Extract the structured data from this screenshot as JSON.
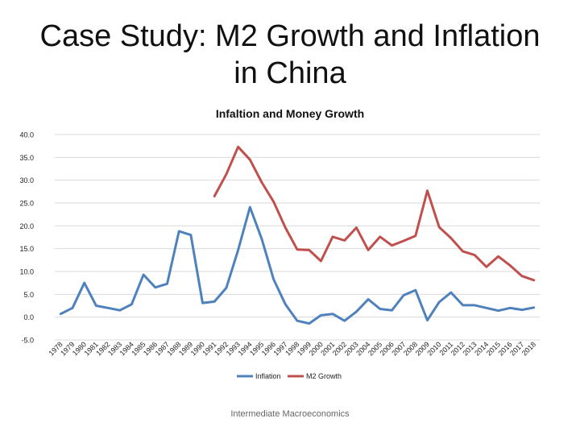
{
  "slide": {
    "title_line1": "Case Study: M2 Growth and Inflation",
    "title_line2": "in China",
    "footer": "Intermediate Macroeconomics"
  },
  "chart_data": {
    "type": "line",
    "title": "Infaltion and Money Growth",
    "xlabel": "",
    "ylabel": "",
    "ylim": [
      -5,
      40
    ],
    "yticks": [
      "-5.0",
      "0.0",
      "5.0",
      "10.0",
      "15.0",
      "20.0",
      "25.0",
      "30.0",
      "35.0",
      "40.0"
    ],
    "grid": true,
    "legend": "bottom",
    "categories": [
      "1978",
      "1979",
      "1980",
      "1981",
      "1982",
      "1983",
      "1984",
      "1985",
      "1986",
      "1987",
      "1988",
      "1989",
      "1990",
      "1991",
      "1992",
      "1993",
      "1994",
      "1995",
      "1996",
      "1997",
      "1998",
      "1999",
      "2000",
      "2001",
      "2002",
      "2003",
      "2004",
      "2005",
      "2006",
      "2007",
      "2008",
      "2009",
      "2010",
      "2011",
      "2012",
      "2013",
      "2014",
      "2015",
      "2016",
      "2017",
      "2018"
    ],
    "series": [
      {
        "name": "Inflation",
        "color": "#4F81BD",
        "values": [
          0.7,
          2.0,
          7.5,
          2.5,
          2.0,
          1.5,
          2.8,
          9.3,
          6.5,
          7.3,
          18.8,
          18.0,
          3.1,
          3.4,
          6.4,
          14.7,
          24.1,
          17.1,
          8.3,
          2.8,
          -0.8,
          -1.4,
          0.4,
          0.7,
          -0.8,
          1.2,
          3.9,
          1.8,
          1.5,
          4.8,
          5.9,
          -0.7,
          3.3,
          5.4,
          2.6,
          2.6,
          2.0,
          1.4,
          2.0,
          1.6,
          2.1
        ]
      },
      {
        "name": "M2 Growth",
        "color": "#C0504D",
        "values": [
          null,
          null,
          null,
          null,
          null,
          null,
          null,
          null,
          null,
          null,
          null,
          null,
          null,
          26.5,
          31.3,
          37.3,
          34.5,
          29.5,
          25.3,
          19.6,
          14.8,
          14.7,
          12.3,
          17.6,
          16.8,
          19.6,
          14.7,
          17.6,
          15.7,
          16.7,
          17.8,
          27.7,
          19.7,
          17.3,
          14.4,
          13.6,
          11.0,
          13.3,
          11.3,
          9.0,
          8.1
        ]
      }
    ]
  }
}
